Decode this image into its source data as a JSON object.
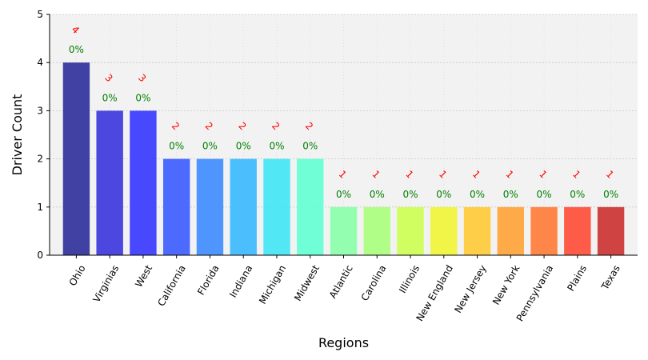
{
  "chart_data": {
    "type": "bar",
    "xlabel": "Regions",
    "ylabel": "Driver Count",
    "ylim": [
      0,
      5
    ],
    "yticks": [
      "0",
      "1",
      "2",
      "3",
      "4",
      "5"
    ],
    "grid": true,
    "categories": [
      "Ohio",
      "Virginias",
      "West",
      "California",
      "Florida",
      "Indiana",
      "Michigan",
      "Midwest",
      "Atlantic",
      "Carolina",
      "Illinois",
      "New England",
      "New Jersey",
      "New York",
      "Pennsylvania",
      "Plains",
      "Texas"
    ],
    "values": [
      4,
      3,
      3,
      2,
      2,
      2,
      2,
      2,
      1,
      1,
      1,
      1,
      1,
      1,
      1,
      1,
      1
    ],
    "count_labels": [
      "4",
      "3",
      "3",
      "2",
      "2",
      "2",
      "2",
      "2",
      "1",
      "1",
      "1",
      "1",
      "1",
      "1",
      "1",
      "1",
      "1"
    ],
    "percent_labels": [
      "0%",
      "0%",
      "0%",
      "0%",
      "0%",
      "0%",
      "0%",
      "0%",
      "0%",
      "0%",
      "0%",
      "0%",
      "0%",
      "0%",
      "0%",
      "0%",
      "0%"
    ],
    "colors": [
      "#2e2e9a",
      "#3a34dc",
      "#3535ff",
      "#3a5cff",
      "#3c8cff",
      "#38b9ff",
      "#40e6f5",
      "#60ffd3",
      "#8affa8",
      "#a8ff7c",
      "#ccff50",
      "#f0f535",
      "#ffca35",
      "#ffa235",
      "#ff7a35",
      "#ff4a35",
      "#cc3030"
    ],
    "background": "#f2f2f2"
  }
}
